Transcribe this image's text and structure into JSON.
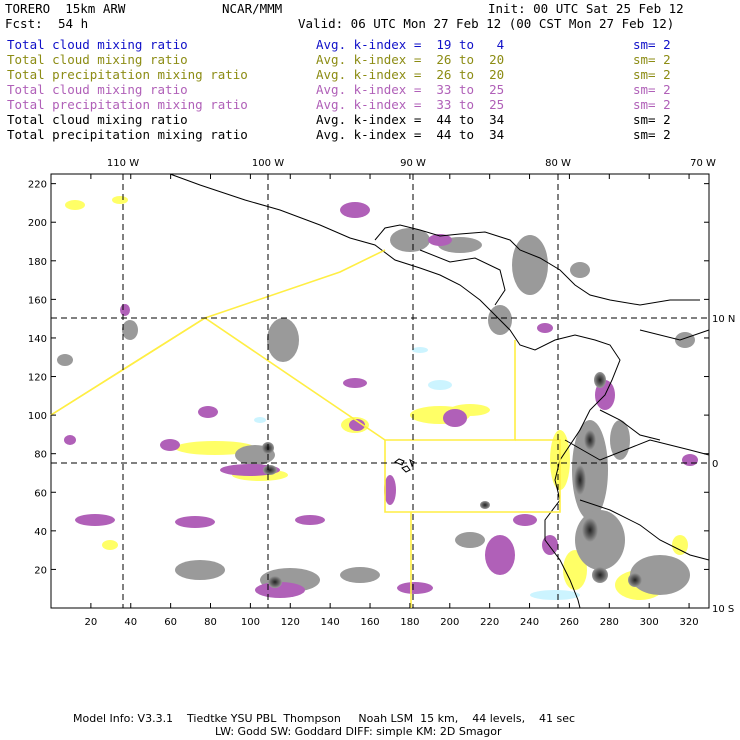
{
  "header": {
    "model": "TORERO  15km ARW",
    "center": "NCAR/MMM",
    "init": "Init: 00 UTC Sat 25 Feb 12",
    "fcst_label": "Fcst:",
    "fcst_value": "54 h",
    "valid": "Valid: 06 UTC Mon 27 Feb 12 (00 CST Mon 27 Feb 12)"
  },
  "legend": [
    {
      "field": "Total cloud mixing ratio",
      "kindex": "Avg. k-index =  19 to   4",
      "sm": "sm= 2",
      "color": "#1010c8"
    },
    {
      "field": "Total cloud mixing ratio",
      "kindex": "Avg. k-index =  26 to  20",
      "sm": "sm= 2",
      "color": "#8c8c14"
    },
    {
      "field": "Total precipitation mixing ratio",
      "kindex": "Avg. k-index =  26 to  20",
      "sm": "sm= 2",
      "color": "#8c8c14"
    },
    {
      "field": "Total cloud mixing ratio",
      "kindex": "Avg. k-index =  33 to  25",
      "sm": "sm= 2",
      "color": "#b060b8"
    },
    {
      "field": "Total precipitation mixing ratio",
      "kindex": "Avg. k-index =  33 to  25",
      "sm": "sm= 2",
      "color": "#b060b8"
    },
    {
      "field": "Total cloud mixing ratio",
      "kindex": "Avg. k-index =  44 to  34",
      "sm": "sm= 2",
      "color": "#000000"
    },
    {
      "field": "Total precipitation mixing ratio",
      "kindex": "Avg. k-index =  44 to  34",
      "sm": "sm= 2",
      "color": "#000000"
    }
  ],
  "axes": {
    "lon_labels": [
      "110 W",
      "100 W",
      "90 W",
      "80 W",
      "70 W"
    ],
    "lat_labels": [
      "10 N",
      "0",
      "10 S"
    ],
    "x_ticks": [
      "20",
      "40",
      "60",
      "80",
      "100",
      "120",
      "140",
      "160",
      "180",
      "200",
      "220",
      "240",
      "260",
      "280",
      "300",
      "320"
    ],
    "y_ticks": [
      "20",
      "40",
      "60",
      "80",
      "100",
      "120",
      "140",
      "160",
      "180",
      "200",
      "220"
    ]
  },
  "colors": {
    "coast": "#000000",
    "grid": "#000000",
    "boundary": "#ffee44",
    "gray": "#9a9a9a",
    "purple": "#b060b8",
    "yellow": "#ffff66",
    "cyan": "#ccf4ff"
  },
  "footer": {
    "line1": "Model Info: V3.3.1    Tiedtke YSU PBL  Thompson     Noah LSM  15 km,    44 levels,    41 sec",
    "line2": "LW: Godd SW: Goddard DIFF: simple KM: 2D Smagor"
  }
}
